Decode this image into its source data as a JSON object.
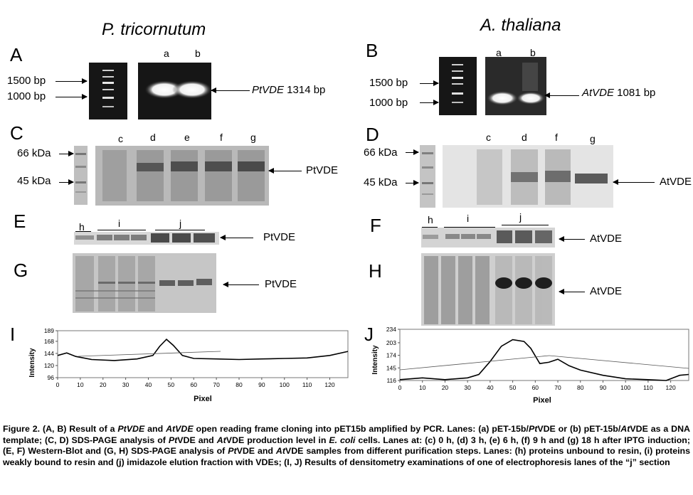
{
  "titles": {
    "left": "P. tricornutum",
    "right": "A. thaliana"
  },
  "panels": {
    "A": "A",
    "B": "B",
    "C": "C",
    "D": "D",
    "E": "E",
    "F": "F",
    "G": "G",
    "H": "H",
    "I": "I",
    "J": "J"
  },
  "bp": {
    "b1500": "1500 bp",
    "b1000": "1000 bp"
  },
  "kda": {
    "k66": "66 kDa",
    "k45": "45 kDa"
  },
  "lanes": {
    "a": "a",
    "b": "b",
    "c": "c",
    "d": "d",
    "e": "e",
    "f": "f",
    "g": "g",
    "h": "h",
    "i": "i",
    "j": "j"
  },
  "labels": {
    "ptvde_pcr_gene": "PtVDE",
    "ptvde_pcr_size": " 1314 bp",
    "atvde_pcr_gene": "AtVDE",
    "atvde_pcr_size": " 1081 bp",
    "ptvde": "PtVDE",
    "atvde": "AtVDE"
  },
  "plot_i": {
    "ylabel": "Intensity",
    "xlabel": "Pixel",
    "yticks": [
      "189",
      "168",
      "144",
      "120",
      "96"
    ],
    "xticks": [
      "0",
      "10",
      "20",
      "30",
      "40",
      "50",
      "60",
      "70",
      "80",
      "90",
      "100",
      "110",
      "120"
    ]
  },
  "plot_j": {
    "ylabel": "Intensity",
    "xlabel": "Pixel",
    "yticks": [
      "234",
      "203",
      "174",
      "145",
      "116"
    ],
    "xticks": [
      "0",
      "10",
      "20",
      "30",
      "40",
      "50",
      "60",
      "70",
      "80",
      "90",
      "100",
      "110",
      "120"
    ]
  },
  "chart_data": [
    {
      "type": "line",
      "name": "I",
      "xlabel": "Pixel",
      "ylabel": "Intensity",
      "xlim": [
        0,
        128
      ],
      "ylim": [
        96,
        189
      ],
      "x": [
        0,
        4,
        8,
        15,
        25,
        35,
        42,
        45,
        48,
        51,
        55,
        60,
        70,
        80,
        90,
        100,
        110,
        120,
        128
      ],
      "values": [
        140,
        145,
        138,
        132,
        130,
        133,
        140,
        158,
        172,
        160,
        140,
        134,
        133,
        132,
        133,
        134,
        135,
        140,
        148
      ]
    },
    {
      "type": "line",
      "name": "J",
      "xlabel": "Pixel",
      "ylabel": "Intensity",
      "xlim": [
        0,
        128
      ],
      "ylim": [
        116,
        234
      ],
      "x": [
        0,
        5,
        10,
        20,
        30,
        35,
        40,
        45,
        50,
        55,
        58,
        62,
        66,
        70,
        75,
        80,
        90,
        100,
        110,
        118,
        124,
        128
      ],
      "values": [
        118,
        120,
        122,
        118,
        122,
        130,
        160,
        195,
        210,
        206,
        190,
        155,
        158,
        165,
        150,
        140,
        128,
        120,
        118,
        116,
        128,
        130
      ]
    }
  ],
  "caption": {
    "p1": "Figure 2. (A, B) Result of a ",
    "i1": "PtVDE",
    "p2": " and ",
    "i2": "AtVDE",
    "p3": " open reading frame cloning into pET15b amplified by PCR. Lanes: (a) pET-15b/",
    "i3": "Pt",
    "p4": "VDE or (b) pET-15b/",
    "i4": "At",
    "p5": "VDE as a DNA template; (C, D) SDS-PAGE analysis of ",
    "i5": "Pt",
    "p6": "VDE and ",
    "i6": "At",
    "p7": "VDE production level in ",
    "i7": "E. coli",
    "p8": " cells. Lanes at: (c) 0 h, (d) 3 h, (e) 6 h, (f) 9 h and (g) 18 h after IPTG induction; (E, F) Western-Blot and (G, H) SDS-PAGE analysis of ",
    "i8": "Pt",
    "p9": "VDE and ",
    "i9": "At",
    "p10": "VDE samples from different purification steps. Lanes: (h) proteins unbound to resin, (i) proteins weakly bound to resin and (j) imidazole elution fraction with VDEs; (I, J) Results of densitometry examinations of one of electrophoresis lanes of the “j” section"
  }
}
